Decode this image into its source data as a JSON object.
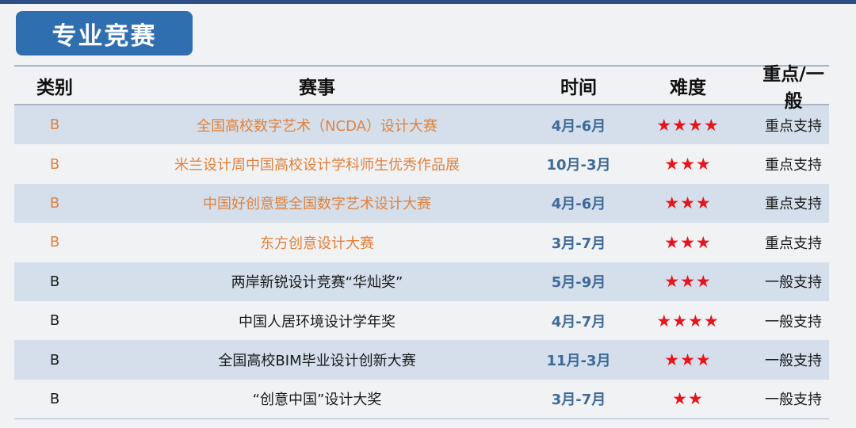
{
  "title": "专业竞赛",
  "headers": [
    "类别",
    "赛事",
    "时间",
    "难度",
    "重点/一般"
  ],
  "colors": {
    "title_bg": "#2f6fb0",
    "highlight_text": "#e0823d",
    "star": "#e8141c",
    "time_text": "#3f6a98",
    "row_shade": "#d4dfeb"
  },
  "star_icon": "star-icon",
  "rows": [
    {
      "category": "B",
      "name": "全国高校数字艺术（NCDA）设计大赛",
      "time": "4月-6月",
      "difficulty": 4,
      "stars": "★★★★",
      "support": "重点支持",
      "highlight": true
    },
    {
      "category": "B",
      "name": "米兰设计周中国高校设计学科师生优秀作品展",
      "time": "10月-3月",
      "difficulty": 3,
      "stars": "★★★",
      "support": "重点支持",
      "highlight": true
    },
    {
      "category": "B",
      "name": "中国好创意暨全国数字艺术设计大赛",
      "time": "4月-6月",
      "difficulty": 3,
      "stars": "★★★",
      "support": "重点支持",
      "highlight": true
    },
    {
      "category": "B",
      "name": "东方创意设计大赛",
      "time": "3月-7月",
      "difficulty": 3,
      "stars": "★★★",
      "support": "重点支持",
      "highlight": true
    },
    {
      "category": "B",
      "name": "两岸新锐设计竞赛“华灿奖”",
      "time": "5月-9月",
      "difficulty": 3,
      "stars": "★★★",
      "support": "一般支持",
      "highlight": false
    },
    {
      "category": "B",
      "name": "中国人居环境设计学年奖",
      "time": "4月-7月",
      "difficulty": 4,
      "stars": "★★★★",
      "support": "一般支持",
      "highlight": false
    },
    {
      "category": "B",
      "name": "全国高校BIM毕业设计创新大赛",
      "time": "11月-3月",
      "difficulty": 3,
      "stars": "★★★",
      "support": "一般支持",
      "highlight": false
    },
    {
      "category": "B",
      "name": "“创意中国”设计大奖",
      "time": "3月-7月",
      "difficulty": 2,
      "stars": "★★",
      "support": "一般支持",
      "highlight": false
    }
  ]
}
